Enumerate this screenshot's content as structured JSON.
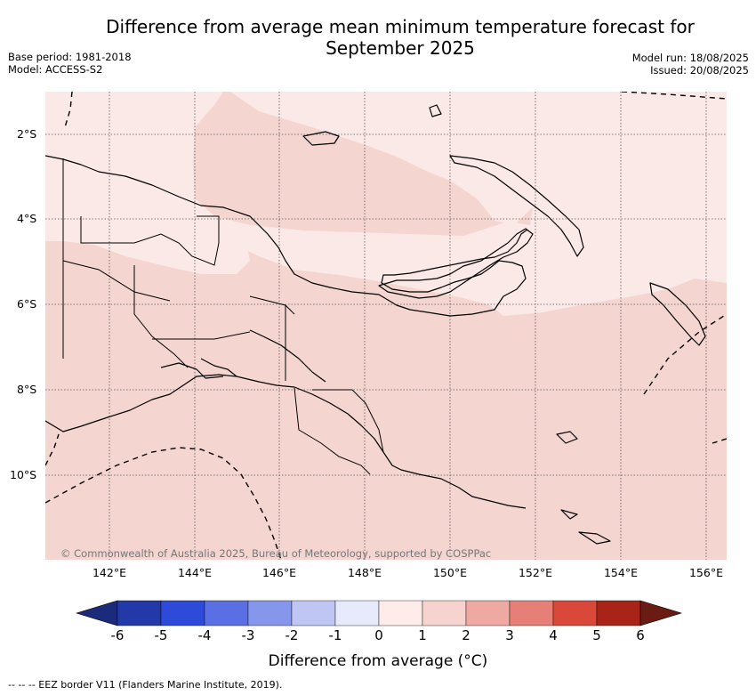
{
  "title_line1": "Difference from average mean minimum temperature forecast for",
  "title_line2": "September 2025",
  "meta_left": {
    "base_period": "Base period: 1981-2018",
    "model": "Model: ACCESS-S2"
  },
  "meta_right": {
    "model_run": "Model run: 18/08/2025",
    "issued": "Issued: 20/08/2025"
  },
  "latitude_labels": [
    "2°S",
    "4°S",
    "6°S",
    "8°S",
    "10°S"
  ],
  "longitude_labels": [
    "142°E",
    "144°E",
    "146°E",
    "148°E",
    "150°E",
    "152°E",
    "154°E",
    "156°E"
  ],
  "copyright": "© Commonwealth of Australia 2025, Bureau of Meteorology, supported by COSPPac",
  "colorbar": {
    "label": "Difference from average (°C)",
    "ticks": [
      "-6",
      "-5",
      "-4",
      "-3",
      "-2",
      "-1",
      "0",
      "1",
      "2",
      "3",
      "4",
      "5",
      "6"
    ],
    "colors": [
      "#2339a7",
      "#2e4ad9",
      "#5a6fe3",
      "#8696ea",
      "#bfc6f3",
      "#e6eafa",
      "#fdecea",
      "#f7d3cf",
      "#efa9a3",
      "#e57f77",
      "#d94838",
      "#a82418"
    ],
    "under_color": "#1b2a7a",
    "over_color": "#6a1b14"
  },
  "map_fill": {
    "zero_to_one": "#fbe9e7",
    "one_to_two": "#f5d5d0"
  },
  "eez_legend": "-- -- -- EEZ border V11 (Flanders Marine Institute, 2019)."
}
